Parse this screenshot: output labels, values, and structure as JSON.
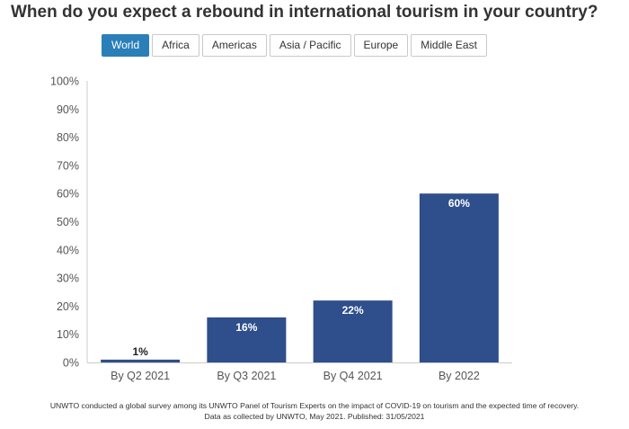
{
  "title": "When do you expect a rebound in international tourism in your country?",
  "region_tabs": {
    "selected": "World",
    "items": [
      "World",
      "Africa",
      "Americas",
      "Asia / Pacific",
      "Europe",
      "Middle East"
    ]
  },
  "colors": {
    "bar": "#2e4e8c",
    "tab_active": "#2a7fb8",
    "axis_text": "#555555"
  },
  "chart_data": {
    "type": "bar",
    "title": "When do you expect a rebound in international tourism in your country?",
    "categories": [
      "By Q2 2021",
      "By Q3 2021",
      "By Q4 2021",
      "By 2022"
    ],
    "values": [
      1,
      16,
      22,
      60
    ],
    "data_labels": [
      "1%",
      "16%",
      "22%",
      "60%"
    ],
    "ylim": [
      0,
      100
    ],
    "yticks": [
      "0%",
      "10%",
      "20%",
      "30%",
      "40%",
      "50%",
      "60%",
      "70%",
      "80%",
      "90%",
      "100%"
    ],
    "xlabel": "",
    "ylabel": "",
    "grid": false,
    "legend": "none"
  },
  "footnote": {
    "line1": "UNWTO conducted a global survey among its UNWTO Panel of Tourism Experts on the impact of COVID-19 on tourism and the expected time of recovery.",
    "line2": "Data as collected by UNWTO, May 2021. Published: 31/05/2021"
  }
}
